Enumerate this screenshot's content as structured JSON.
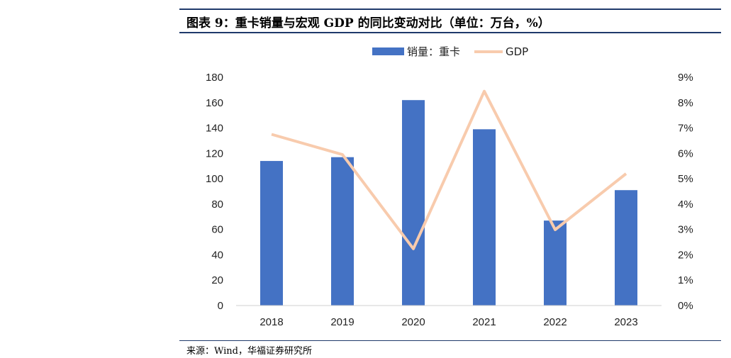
{
  "title": "图表 9：重卡销量与宏观 GDP 的同比变动对比（单位：万台，%）",
  "source": "来源：Wind，华福证券研究所",
  "colors": {
    "bar": "#4472c4",
    "line": "#f8cbad",
    "rule": "#1f3a6b"
  },
  "chart_data": {
    "type": "bar+line",
    "categories": [
      "2018",
      "2019",
      "2020",
      "2021",
      "2022",
      "2023"
    ],
    "series": [
      {
        "name": "销量：重卡",
        "type": "bar",
        "axis": "left",
        "values": [
          114,
          117,
          162,
          139,
          67,
          91
        ]
      },
      {
        "name": "GDP",
        "type": "line",
        "axis": "right",
        "values": [
          6.75,
          5.95,
          2.24,
          8.45,
          2.99,
          5.2
        ]
      }
    ],
    "ylim_left": [
      0,
      180
    ],
    "yticks_left": [
      "0",
      "20",
      "40",
      "60",
      "80",
      "100",
      "120",
      "140",
      "160",
      "180"
    ],
    "ylim_right": [
      0,
      9
    ],
    "yticks_right": [
      "0%",
      "1%",
      "2%",
      "3%",
      "4%",
      "5%",
      "6%",
      "7%",
      "8%",
      "9%"
    ],
    "legend": "top-center",
    "grid": false
  }
}
